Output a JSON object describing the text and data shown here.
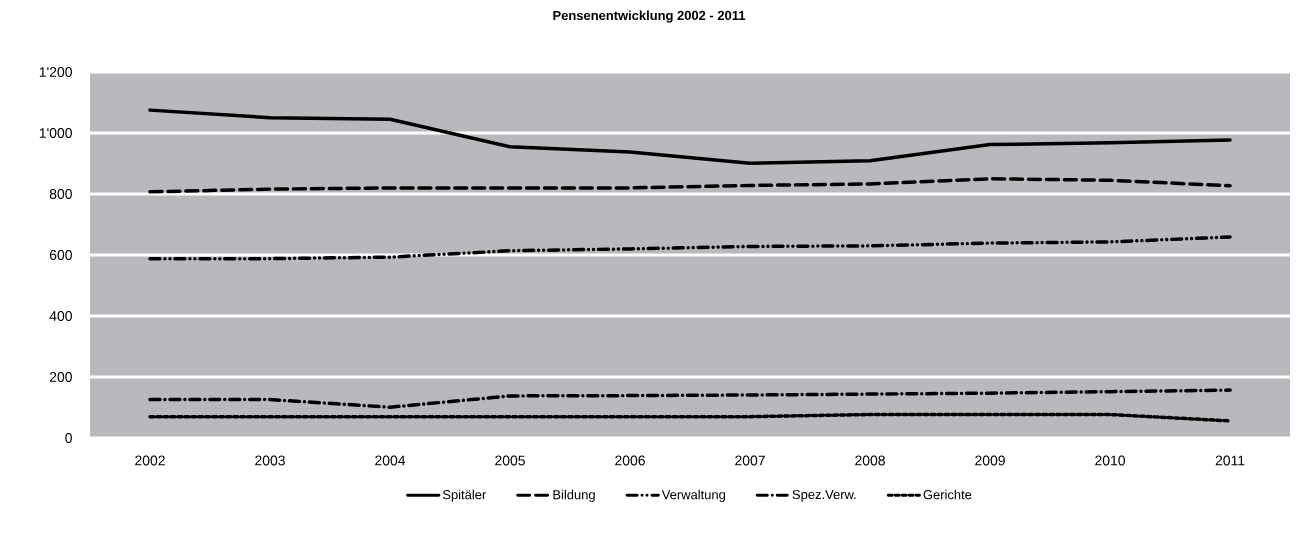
{
  "chart_data": {
    "type": "line",
    "title": "Pensenentwicklung 2002 - 2011",
    "categories": [
      "2002",
      "2003",
      "2004",
      "2005",
      "2006",
      "2007",
      "2008",
      "2009",
      "2010",
      "2011"
    ],
    "series": [
      {
        "name": "Spitäler",
        "color": "#000000",
        "line_style": "solid",
        "values": [
          1075,
          1050,
          1045,
          955,
          938,
          901,
          909,
          962,
          968,
          977
        ]
      },
      {
        "name": "Bildung",
        "color": "#000000",
        "line_style": "dashed",
        "values": [
          807,
          816,
          820,
          820,
          820,
          828,
          833,
          850,
          845,
          827
        ]
      },
      {
        "name": "Verwaltung",
        "color": "#000000",
        "line_style": "dashdotdotted",
        "values": [
          588,
          588,
          593,
          614,
          620,
          628,
          630,
          639,
          643,
          659
        ]
      },
      {
        "name": "Spez.Verw.",
        "color": "#000000",
        "line_style": "dashdotted",
        "values": [
          126,
          126,
          101,
          138,
          139,
          141,
          144,
          147,
          152,
          157
        ]
      },
      {
        "name": "Gerichte",
        "color": "#000000",
        "line_style": "dotted",
        "values": [
          70,
          70,
          70,
          70,
          70,
          70,
          77,
          77,
          77,
          56
        ]
      }
    ],
    "ylim": [
      0,
      1200
    ],
    "yticks": [
      0,
      200,
      400,
      600,
      800,
      {
        "value": 1000,
        "label": "1'000"
      },
      {
        "value": 1200,
        "label": "1'200"
      }
    ],
    "grid": "y",
    "legend": "bottom",
    "marker": "none"
  }
}
